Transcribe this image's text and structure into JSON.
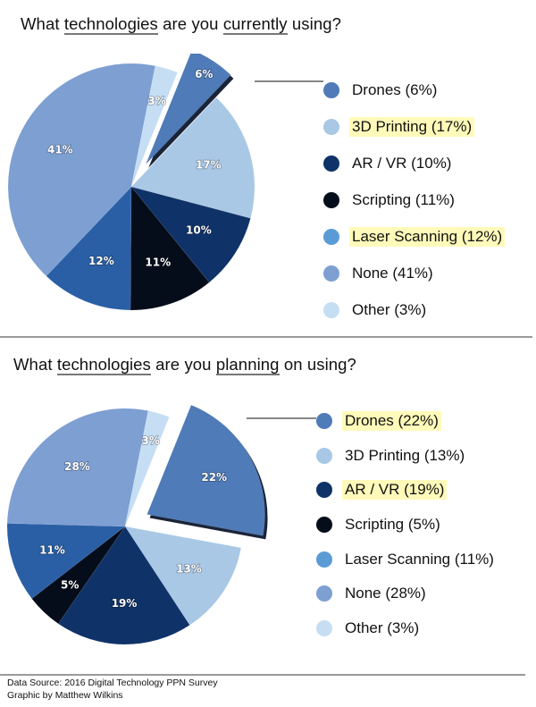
{
  "charts": [
    {
      "title_parts": [
        "What ",
        "technologies",
        " are you ",
        "currently",
        " using?"
      ],
      "legend": [
        {
          "label": "Drones (6%)",
          "highlighted": false
        },
        {
          "label": "3D Printing (17%)",
          "highlighted": true
        },
        {
          "label": "AR / VR (10%)",
          "highlighted": false
        },
        {
          "label": "Scripting (11%)",
          "highlighted": false
        },
        {
          "label": "Laser Scanning (12%)",
          "highlighted": true
        },
        {
          "label": "None (41%)",
          "highlighted": false
        },
        {
          "label": "Other (3%)",
          "highlighted": false
        }
      ]
    },
    {
      "title_parts": [
        "What ",
        "technologies",
        " are you ",
        "planning",
        " on using?"
      ],
      "legend": [
        {
          "label": "Drones (22%)",
          "highlighted": true
        },
        {
          "label": "3D Printing (13%)",
          "highlighted": false
        },
        {
          "label": "AR / VR (19%)",
          "highlighted": true
        },
        {
          "label": "Scripting (5%)",
          "highlighted": false
        },
        {
          "label": "Laser Scanning (11%)",
          "highlighted": false
        },
        {
          "label": "None (28%)",
          "highlighted": false
        },
        {
          "label": "Other (3%)",
          "highlighted": false
        }
      ]
    }
  ],
  "footer": {
    "source": "Data Source: 2016 Digital Technology PPN Survey",
    "credit": "Graphic by Matthew Wilkins"
  },
  "colors": {
    "Drones": "#4f7bb8",
    "3D Printing": "#a9c8e6",
    "AR / VR": "#0f3268",
    "Scripting": "#050c1a",
    "Laser Scanning": "#2a5fa5",
    "None": "#7d9fd2",
    "Other": "#c5def3",
    "legend_Laser Scanning": "#5b9bd5",
    "highlight": "#fffaba"
  },
  "chart_data": [
    {
      "type": "pie",
      "title": "What technologies are you currently using?",
      "categories": [
        "Drones",
        "3D Printing",
        "AR / VR",
        "Scripting",
        "Laser Scanning",
        "None",
        "Other"
      ],
      "values": [
        6,
        17,
        10,
        11,
        12,
        41,
        3
      ],
      "unit": "%",
      "exploded": [
        "Drones"
      ],
      "highlighted_legend": [
        "3D Printing",
        "Laser Scanning"
      ],
      "legend_position": "right"
    },
    {
      "type": "pie",
      "title": "What technologies are you planning on using?",
      "categories": [
        "Drones",
        "3D Printing",
        "AR / VR",
        "Scripting",
        "Laser Scanning",
        "None",
        "Other"
      ],
      "values": [
        22,
        13,
        19,
        5,
        11,
        28,
        3
      ],
      "unit": "%",
      "exploded": [
        "Drones"
      ],
      "highlighted_legend": [
        "Drones",
        "AR / VR"
      ],
      "legend_position": "right"
    }
  ]
}
